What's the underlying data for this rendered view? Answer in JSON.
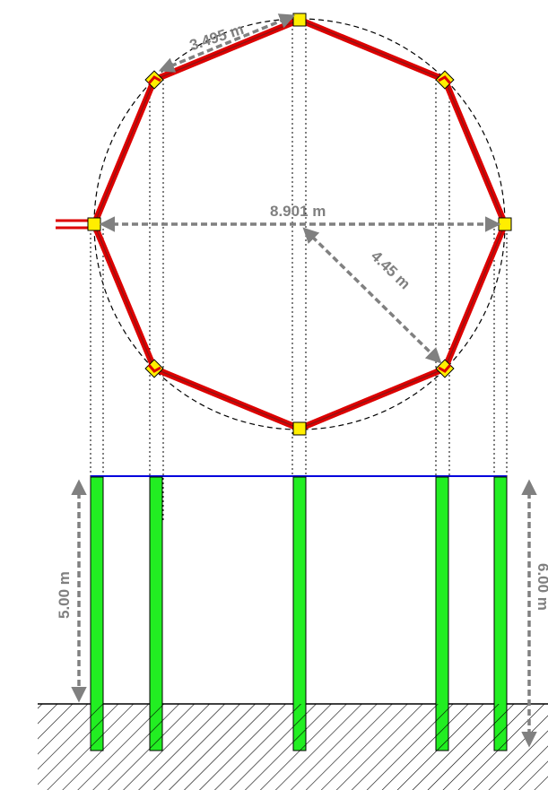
{
  "dimensions": {
    "side_length": "3.495 m",
    "diameter": "8.901 m",
    "radius": "4.45 m",
    "post_height_left": "5.00 m",
    "post_height_right": "6.00 m"
  },
  "colors": {
    "beam": "#dd0000",
    "beam_inner": "#ffe28a",
    "node": "#ffee00",
    "post": "#22ee22",
    "top_beam": "#0000dd",
    "dimension": "#808080",
    "ground": "#000000"
  }
}
